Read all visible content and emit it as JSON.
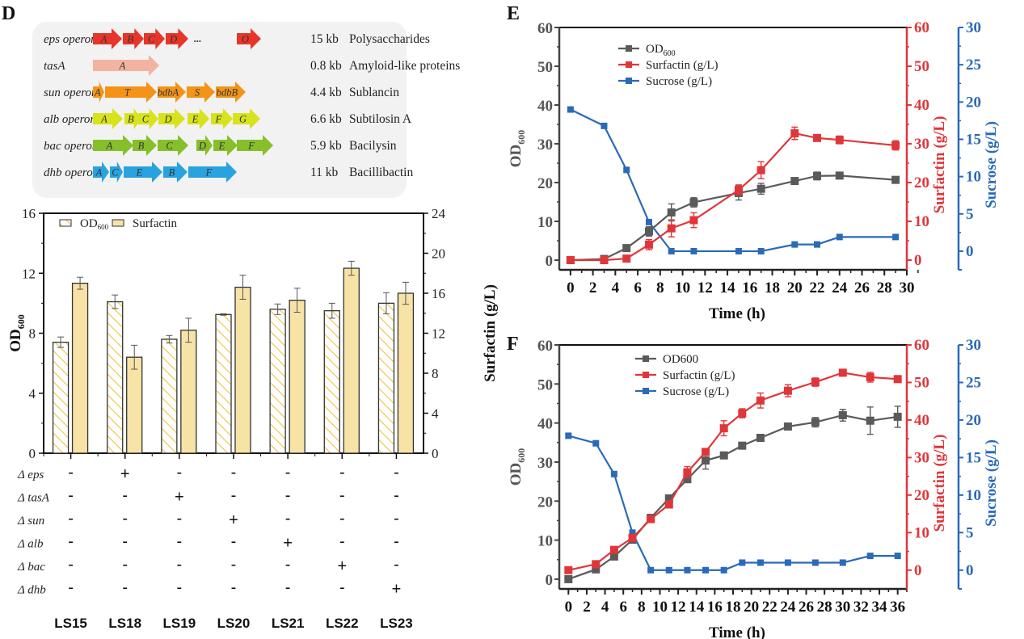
{
  "figure": {
    "panel_labels": {
      "D": "D",
      "E": "E",
      "F": "F"
    }
  },
  "gene_clusters": {
    "rows": [
      {
        "label": "eps operon",
        "size": "15 kb",
        "product": "Polysaccharides",
        "color": "#e8352a",
        "genes": [
          "A",
          "B",
          "C",
          "D",
          "...",
          "O"
        ]
      },
      {
        "label": "tasA",
        "size": "0.8 kb",
        "product": "Amyloid-like proteins",
        "color": "#f4b3a0",
        "genes": [
          "A"
        ]
      },
      {
        "label": "sun operon",
        "size": "4.4 kb",
        "product": "Sublancin",
        "color": "#f39418",
        "genes": [
          "A",
          "T",
          "bdbA",
          "S",
          "bdbB"
        ]
      },
      {
        "label": "alb operon",
        "size": "6.6 kb",
        "product": "Subtilosin A",
        "color": "#d7e31c",
        "genes": [
          "A",
          "B",
          "C",
          "D",
          "E",
          "F",
          "G"
        ]
      },
      {
        "label": "bac operon",
        "size": "5.9 kb",
        "product": "Bacilysin",
        "color": "#86bf2a",
        "genes": [
          "A",
          "B",
          "C",
          "D",
          "E",
          "F"
        ]
      },
      {
        "label": "dhb operon",
        "size": "11 kb",
        "product": "Bacillibactin",
        "color": "#29a3df",
        "genes": [
          "A",
          "C",
          "E",
          "B",
          "F"
        ]
      }
    ]
  },
  "chart_data": [
    {
      "id": "D",
      "type": "bar",
      "title": "",
      "categories": [
        "LS15",
        "LS18",
        "LS19",
        "LS20",
        "LS21",
        "LS22",
        "LS23"
      ],
      "ylabel": "OD600",
      "ylabel_main": "OD",
      "ylabel_sub": "600",
      "y2label": "Surfactin (g/L)",
      "ylim": [
        0,
        16
      ],
      "y2lim": [
        0,
        24
      ],
      "yticks": [
        "0",
        "4",
        "8",
        "12",
        "16"
      ],
      "y2ticks": [
        "0",
        "4",
        "8",
        "12",
        "16",
        "20",
        "24"
      ],
      "legend": {
        "position": "top-left",
        "entries": [
          "OD600",
          "Surfactin"
        ],
        "od_main": "OD",
        "od_sub": "600",
        "surf": "Surfactin"
      },
      "series": [
        {
          "name": "OD600",
          "axis": "left",
          "values": [
            7.4,
            10.1,
            7.6,
            9.25,
            9.6,
            9.5,
            10.0
          ],
          "errors": [
            0.35,
            0.45,
            0.25,
            0.05,
            0.35,
            0.5,
            0.7
          ],
          "fill": "hatched",
          "color": "#f0c23c"
        },
        {
          "name": "Surfactin",
          "axis": "right",
          "values": [
            17.0,
            9.6,
            12.3,
            16.6,
            15.3,
            18.5,
            16.0
          ],
          "errors": [
            0.6,
            1.2,
            1.2,
            1.2,
            1.2,
            0.7,
            1.1
          ],
          "fill": "solid",
          "color": "#f7e3a6"
        }
      ],
      "genotype_table": {
        "rows": [
          {
            "label": "Δ eps",
            "values": [
              "-",
              "+",
              "-",
              "-",
              "-",
              "-",
              "-"
            ]
          },
          {
            "label": "Δ tasA",
            "values": [
              "-",
              "-",
              "+",
              "-",
              "-",
              "-",
              "-"
            ]
          },
          {
            "label": "Δ sun",
            "values": [
              "-",
              "-",
              "-",
              "+",
              "-",
              "-",
              "-"
            ]
          },
          {
            "label": "Δ alb",
            "values": [
              "-",
              "-",
              "-",
              "-",
              "+",
              "-",
              "-"
            ]
          },
          {
            "label": "Δ bac",
            "values": [
              "-",
              "-",
              "-",
              "-",
              "-",
              "+",
              "-"
            ]
          },
          {
            "label": "Δ dhb",
            "values": [
              "-",
              "-",
              "-",
              "-",
              "-",
              "-",
              "+"
            ]
          }
        ]
      }
    },
    {
      "id": "E",
      "type": "line",
      "xlabel": "Time (h)",
      "ylabel": "OD600",
      "ylabel_main": "OD",
      "ylabel_sub": "600",
      "y2label": "Surfactin (g/L)",
      "y3label": "Sucrose (g/L)",
      "xlim": [
        -1,
        30
      ],
      "xticks": [
        0,
        2,
        4,
        6,
        8,
        10,
        12,
        14,
        16,
        18,
        20,
        22,
        24,
        26,
        28,
        30
      ],
      "ylim": [
        -2.5,
        60
      ],
      "yticks": [
        0,
        10,
        20,
        30,
        40,
        50,
        60
      ],
      "y2lim": [
        -2.5,
        60
      ],
      "y2ticks": [
        0,
        10,
        20,
        30,
        40,
        50,
        60
      ],
      "y3lim": [
        -2.5,
        30
      ],
      "y3ticks": [
        0,
        5,
        10,
        15,
        20,
        25,
        30
      ],
      "legend": {
        "position": "top-left",
        "entries": [
          "OD600",
          "Surfactin (g/L)",
          "Sucrose (g/L)"
        ],
        "od_main": "OD",
        "od_sub": "600"
      },
      "x": [
        0,
        3,
        5,
        7,
        9,
        11,
        15,
        17,
        20,
        22,
        24,
        29
      ],
      "series": [
        {
          "name": "OD600",
          "axis": "left",
          "color": "#404040",
          "values": [
            0,
            0.3,
            3.1,
            7.4,
            12.3,
            14.9,
            17.3,
            18.4,
            20.4,
            21.7,
            21.8,
            20.7
          ],
          "errors": [
            0.5,
            0.5,
            0.6,
            1.2,
            2.2,
            1.2,
            1.8,
            1.4,
            0.8,
            1.0,
            0.8,
            0.7
          ]
        },
        {
          "name": "Surfactin (g/L)",
          "axis": "right",
          "color": "#e0363a",
          "values": [
            0,
            0,
            0.4,
            4.0,
            8.2,
            10.3,
            18.1,
            23.2,
            32.7,
            31.5,
            31.0,
            29.6
          ],
          "errors": [
            0.3,
            0.3,
            0.3,
            1.3,
            2.2,
            1.9,
            1.3,
            2.2,
            1.6,
            0.7,
            1.0,
            1.2
          ]
        },
        {
          "name": "Sucrose (g/L)",
          "axis": "right2",
          "color": "#2a6ab8",
          "values": [
            19.0,
            16.8,
            10.9,
            3.9,
            0,
            0,
            0,
            0,
            0.9,
            0.9,
            1.9,
            1.9
          ],
          "errors": []
        }
      ]
    },
    {
      "id": "F",
      "type": "line",
      "xlabel": "Time (h)",
      "ylabel": "OD600",
      "ylabel_main": "OD",
      "ylabel_sub": "600",
      "y2label": "Surfactin (g/L)",
      "y3label": "Sucrose (g/L)",
      "xlim": [
        -1,
        37
      ],
      "xticks": [
        0,
        2,
        4,
        6,
        8,
        10,
        12,
        14,
        16,
        18,
        20,
        22,
        24,
        26,
        28,
        30,
        32,
        34,
        36
      ],
      "ylim": [
        -2.5,
        60
      ],
      "yticks": [
        0,
        10,
        20,
        30,
        40,
        50,
        60
      ],
      "y2lim": [
        -5,
        60
      ],
      "y2ticks": [
        0,
        10,
        20,
        30,
        40,
        50,
        60
      ],
      "y3lim": [
        -2.5,
        30
      ],
      "y3ticks": [
        0,
        5,
        10,
        15,
        20,
        25,
        30
      ],
      "legend": {
        "position": "top-left",
        "entries": [
          "OD600",
          "Surfactin (g/L)",
          "Sucrose (g/L)"
        ]
      },
      "x": [
        0,
        3,
        5,
        7,
        9,
        11,
        13,
        15,
        17,
        19,
        21,
        24,
        27,
        30,
        33,
        36
      ],
      "series": [
        {
          "name": "OD600",
          "axis": "left",
          "color": "#404040",
          "values": [
            0,
            2.5,
            5.8,
            10.1,
            15.7,
            20.7,
            25.6,
            30.4,
            31.7,
            34.2,
            36.2,
            39.1,
            40.2,
            42.0,
            40.6,
            41.6
          ],
          "errors": [
            0.4,
            0.5,
            0.5,
            0.5,
            0.5,
            0.6,
            0.7,
            2.2,
            0.7,
            0.5,
            0.6,
            0.5,
            1.2,
            1.5,
            3.5,
            2.7
          ]
        },
        {
          "name": "Surfactin (g/L)",
          "axis": "right",
          "color": "#e0363a",
          "values": [
            0,
            1.6,
            5.4,
            8.6,
            13.6,
            17.5,
            26.1,
            31.5,
            37.8,
            41.8,
            45.2,
            47.8,
            50.1,
            52.6,
            51.4,
            50.9
          ],
          "errors": [
            0.3,
            0.4,
            0.5,
            0.5,
            0.6,
            0.8,
            1.5,
            0.8,
            2.0,
            1.2,
            2.0,
            1.6,
            1.1,
            0.7,
            1.3,
            0.6
          ]
        },
        {
          "name": "Sucrose (g/L)",
          "axis": "right2",
          "color": "#2a6ab8",
          "values": [
            17.9,
            16.9,
            12.8,
            5.0,
            0,
            0,
            0,
            0,
            0,
            1.0,
            1.0,
            1.0,
            1.0,
            1.0,
            1.9,
            1.9
          ],
          "errors": []
        }
      ]
    }
  ]
}
